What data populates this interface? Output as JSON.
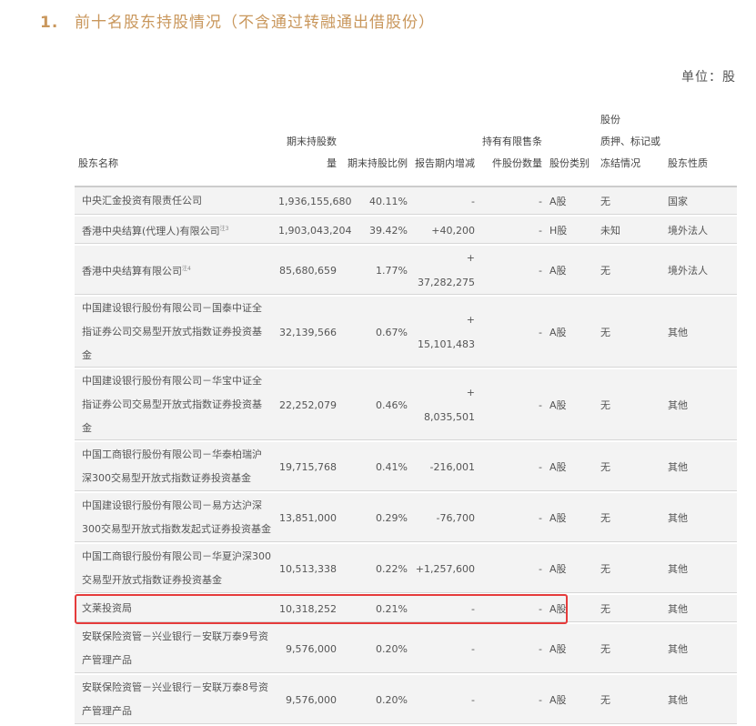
{
  "section": {
    "number": "1.",
    "title": "前十名股东持股情况（不含通过转融通出借股份）"
  },
  "unit": "单位：股",
  "table": {
    "headers": {
      "name": "股东名称",
      "shares": "期末持股数量",
      "ratio": "期末持股比例",
      "change": "报告期内增减",
      "restricted_line1": "持有有限售条",
      "restricted_line2": "件股份数量",
      "share_type": "股份类别",
      "pledge_line1": "股份",
      "pledge_line2": "质押、标记或",
      "pledge_line3": "冻结情况",
      "nature": "股东性质"
    },
    "rows": [
      {
        "name": "中央汇金投资有限责任公司",
        "note": "",
        "shares": "1,936,155,680",
        "ratio": "40.11%",
        "change": "-",
        "restricted": "-",
        "share_type": "A股",
        "pledge": "无",
        "nature": "国家"
      },
      {
        "name": "香港中央结算(代理人)有限公司",
        "note": "注3",
        "shares": "1,903,043,204",
        "ratio": "39.42%",
        "change": "+40,200",
        "restricted": "-",
        "share_type": "H股",
        "pledge": "未知",
        "nature": "境外法人"
      },
      {
        "name": "香港中央结算有限公司",
        "note": "注4",
        "shares": "85,680,659",
        "ratio": "1.77%",
        "change": "+ 37,282,275",
        "restricted": "-",
        "share_type": "A股",
        "pledge": "无",
        "nature": "境外法人"
      },
      {
        "name": "中国建设银行股份有限公司－国泰中证全指证券公司交易型开放式指数证券投资基金",
        "note": "",
        "shares": "32,139,566",
        "ratio": "0.67%",
        "change": "+ 15,101,483",
        "restricted": "-",
        "share_type": "A股",
        "pledge": "无",
        "nature": "其他"
      },
      {
        "name": "中国建设银行股份有限公司－华宝中证全指证券公司交易型开放式指数证券投资基金",
        "note": "",
        "shares": "22,252,079",
        "ratio": "0.46%",
        "change": "+ 8,035,501",
        "restricted": "-",
        "share_type": "A股",
        "pledge": "无",
        "nature": "其他"
      },
      {
        "name": "中国工商银行股份有限公司－华泰柏瑞沪深300交易型开放式指数证券投资基金",
        "note": "",
        "shares": "19,715,768",
        "ratio": "0.41%",
        "change": "-216,001",
        "restricted": "-",
        "share_type": "A股",
        "pledge": "无",
        "nature": "其他"
      },
      {
        "name": "中国建设银行股份有限公司－易方达沪深300交易型开放式指数发起式证券投资基金",
        "note": "",
        "shares": "13,851,000",
        "ratio": "0.29%",
        "change": "-76,700",
        "restricted": "-",
        "share_type": "A股",
        "pledge": "无",
        "nature": "其他"
      },
      {
        "name": "中国工商银行股份有限公司－华夏沪深300交易型开放式指数证券投资基金",
        "note": "",
        "shares": "10,513,338",
        "ratio": "0.22%",
        "change": "+1,257,600",
        "restricted": "-",
        "share_type": "A股",
        "pledge": "无",
        "nature": "其他"
      },
      {
        "name": "文莱投资局",
        "note": "",
        "shares": "10,318,252",
        "ratio": "0.21%",
        "change": "-",
        "restricted": "-",
        "share_type": "A股",
        "pledge": "无",
        "nature": "其他"
      },
      {
        "name": "安联保险资管－兴业银行－安联万泰9号资产管理产品",
        "note": "",
        "shares": "9,576,000",
        "ratio": "0.20%",
        "change": "-",
        "restricted": "-",
        "share_type": "A股",
        "pledge": "无",
        "nature": "其他"
      },
      {
        "name": "安联保险资管－兴业银行－安联万泰8号资产管理产品",
        "note": "",
        "shares": "9,576,000",
        "ratio": "0.20%",
        "change": "-",
        "restricted": "-",
        "share_type": "A股",
        "pledge": "无",
        "nature": "其他"
      }
    ],
    "highlighted_row": 8,
    "highlight_color": "#e53b3b"
  },
  "colors": {
    "title": "#c9975c",
    "row_bg": "#f3f3f3"
  }
}
